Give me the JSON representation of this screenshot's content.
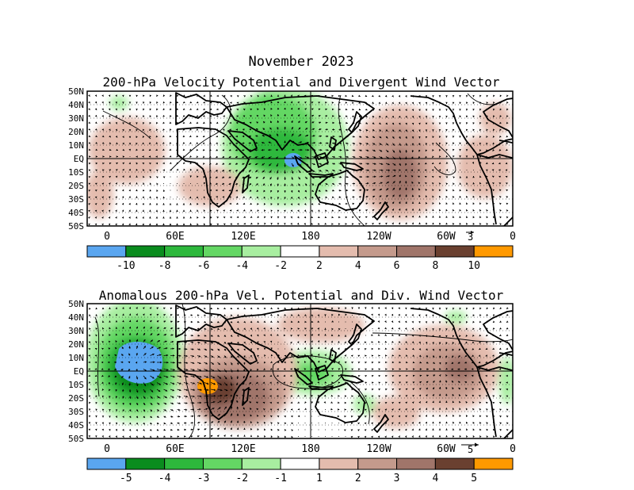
{
  "figure": {
    "title": "November 2023"
  },
  "panels": [
    {
      "title": "200-hPa Velocity Potential and Divergent Wind Vector",
      "lat_labels": [
        "50N",
        "40N",
        "30N",
        "20N",
        "10N",
        "EQ",
        "10S",
        "20S",
        "30S",
        "40S",
        "50S"
      ],
      "lon_labels": [
        "0",
        "60E",
        "120E",
        "180",
        "120W",
        "60W",
        "0"
      ],
      "vector_reference": "3",
      "colorbar": {
        "labels": [
          "-10",
          "-8",
          "-6",
          "-4",
          "-2",
          "2",
          "4",
          "6",
          "8",
          "10"
        ],
        "colors": [
          "#5aa6f0",
          "#0a8c1e",
          "#2db83c",
          "#64d764",
          "#a8eea0",
          "#ffffff",
          "#e4bcae",
          "#c49a8c",
          "#a0756a",
          "#6a4030",
          "#ff9900"
        ]
      }
    },
    {
      "title": "Anomalous 200-hPa Vel. Potential and Div. Wind Vector",
      "lat_labels": [
        "50N",
        "40N",
        "30N",
        "20N",
        "10N",
        "EQ",
        "10S",
        "20S",
        "30S",
        "40S",
        "50S"
      ],
      "lon_labels": [
        "0",
        "60E",
        "120E",
        "180",
        "120W",
        "60W",
        "0"
      ],
      "vector_reference": "5",
      "colorbar": {
        "labels": [
          "-5",
          "-4",
          "-3",
          "-2",
          "-1",
          "1",
          "2",
          "3",
          "4",
          "5"
        ],
        "colors": [
          "#5aa6f0",
          "#0a8c1e",
          "#2db83c",
          "#64d764",
          "#a8eea0",
          "#ffffff",
          "#e4bcae",
          "#c49a8c",
          "#a0756a",
          "#6a4030",
          "#ff9900"
        ]
      }
    }
  ]
}
